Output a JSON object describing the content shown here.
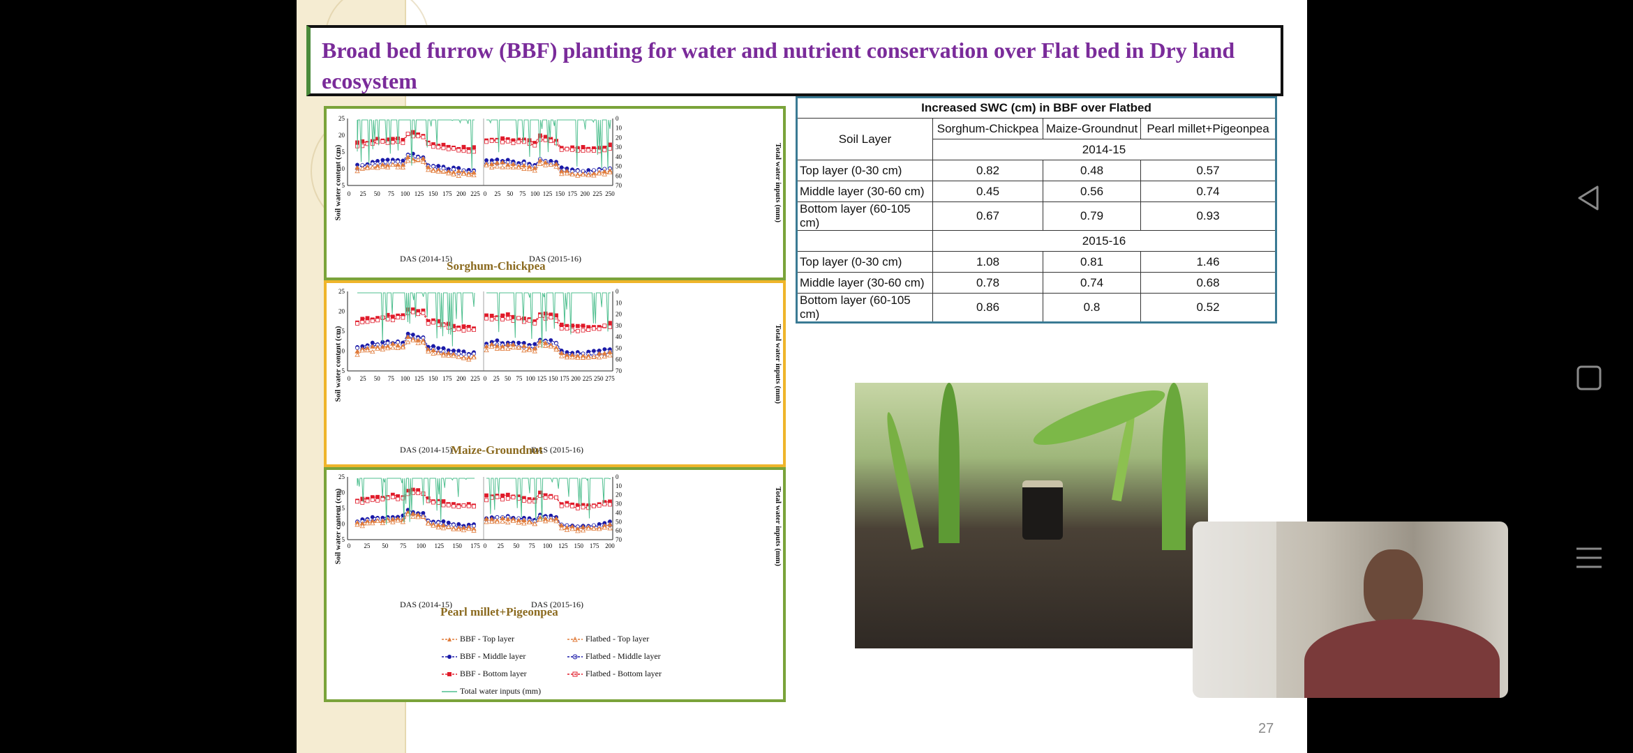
{
  "slide": {
    "title": "Broad bed furrow (BBF) planting for water and nutrient conservation over Flat bed in Dry land ecosystem",
    "slide_number": "27"
  },
  "charts": {
    "left_axis_title": "Soil water content (cm)",
    "right_axis_title": "Total water inputs (mm)",
    "das_2014": "DAS (2014-15)",
    "das_2015": "DAS (2015-16)",
    "panels": [
      {
        "crop": "Sorghum-Chickpea",
        "x_ticks_a": [
          "0",
          "25",
          "50",
          "75",
          "100",
          "125",
          "150",
          "175",
          "200",
          "225"
        ],
        "x_ticks_b": [
          "0",
          "25",
          "50",
          "75",
          "100",
          "125",
          "150",
          "175",
          "200",
          "225",
          "250"
        ]
      },
      {
        "crop": "Maize-Groundnut",
        "x_ticks_a": [
          "0",
          "25",
          "50",
          "75",
          "100",
          "125",
          "150",
          "175",
          "200",
          "225"
        ],
        "x_ticks_b": [
          "0",
          "25",
          "50",
          "75",
          "100",
          "125",
          "150",
          "175",
          "200",
          "225",
          "250",
          "275"
        ]
      },
      {
        "crop": "Pearl millet+Pigeonpea",
        "x_ticks_a": [
          "0",
          "25",
          "50",
          "75",
          "100",
          "125",
          "150",
          "175"
        ],
        "x_ticks_b": [
          "0",
          "25",
          "50",
          "75",
          "100",
          "125",
          "150",
          "175",
          "200"
        ]
      }
    ],
    "y_left_ticks": [
      "5",
      "10",
      "15",
      "20",
      "25"
    ],
    "y_right_ticks": [
      "0",
      "10",
      "20",
      "30",
      "40",
      "50",
      "60",
      "70"
    ],
    "legend": [
      {
        "label": "BBF - Top layer",
        "color": "#e07b3a"
      },
      {
        "label": "Flatbed - Top layer",
        "color": "#e07b3a"
      },
      {
        "label": "BBF - Middle layer",
        "color": "#1a1aa8"
      },
      {
        "label": "Flatbed - Middle layer",
        "color": "#1a1aa8"
      },
      {
        "label": "BBF - Bottom layer",
        "color": "#e01b2a"
      },
      {
        "label": "Flatbed - Bottom layer",
        "color": "#e01b2a"
      },
      {
        "label": "Total water inputs (mm)",
        "color": "#4fbf8f"
      }
    ]
  },
  "table": {
    "caption": "Increased SWC (cm) in BBF over Flatbed",
    "col_soil_layer": "Soil Layer",
    "columns": [
      "Sorghum-Chickpea",
      "Maize-Groundnut",
      "Pearl millet+Pigeonpea"
    ],
    "years": [
      {
        "year": "2014-15",
        "rows": [
          {
            "layer": "Top layer (0-30 cm)",
            "values": [
              "0.82",
              "0.48",
              "0.57"
            ]
          },
          {
            "layer": "Middle layer (30-60 cm)",
            "values": [
              "0.45",
              "0.56",
              "0.74"
            ]
          },
          {
            "layer": "Bottom layer (60-105 cm)",
            "values": [
              "0.67",
              "0.79",
              "0.93"
            ]
          }
        ]
      },
      {
        "year": "2015-16",
        "rows": [
          {
            "layer": "Top layer (0-30 cm)",
            "values": [
              "1.08",
              "0.81",
              "1.46"
            ]
          },
          {
            "layer": "Middle layer (30-60 cm)",
            "values": [
              "0.78",
              "0.74",
              "0.68"
            ]
          },
          {
            "layer": "Bottom layer (60-105 cm)",
            "values": [
              "0.86",
              "0.8",
              "0.52"
            ]
          }
        ]
      }
    ]
  },
  "nav": {
    "back_icon": "back-triangle-icon",
    "home_icon": "home-square-icon",
    "menu_icon": "menu-lines-icon"
  }
}
